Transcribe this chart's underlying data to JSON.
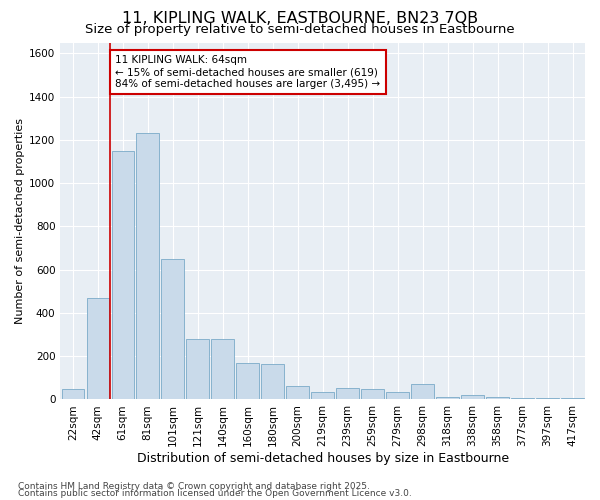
{
  "title1": "11, KIPLING WALK, EASTBOURNE, BN23 7QB",
  "title2": "Size of property relative to semi-detached houses in Eastbourne",
  "xlabel": "Distribution of semi-detached houses by size in Eastbourne",
  "ylabel": "Number of semi-detached properties",
  "categories": [
    "22sqm",
    "42sqm",
    "61sqm",
    "81sqm",
    "101sqm",
    "121sqm",
    "140sqm",
    "160sqm",
    "180sqm",
    "200sqm",
    "219sqm",
    "239sqm",
    "259sqm",
    "279sqm",
    "298sqm",
    "318sqm",
    "338sqm",
    "358sqm",
    "377sqm",
    "397sqm",
    "417sqm"
  ],
  "values": [
    50,
    470,
    1150,
    1230,
    650,
    280,
    280,
    170,
    165,
    60,
    35,
    55,
    50,
    35,
    70,
    10,
    20,
    10,
    5,
    5,
    5
  ],
  "bar_color": "#c9daea",
  "bar_edge_color": "#7aaac8",
  "redline_color": "#cc0000",
  "property_bin_index": 2,
  "annotation_text": "11 KIPLING WALK: 64sqm\n← 15% of semi-detached houses are smaller (619)\n84% of semi-detached houses are larger (3,495) →",
  "annotation_box_facecolor": "#ffffff",
  "annotation_box_edgecolor": "#cc0000",
  "footer1": "Contains HM Land Registry data © Crown copyright and database right 2025.",
  "footer2": "Contains public sector information licensed under the Open Government Licence v3.0.",
  "ylim": [
    0,
    1650
  ],
  "yticks": [
    0,
    200,
    400,
    600,
    800,
    1000,
    1200,
    1400,
    1600
  ],
  "bg_color": "#ffffff",
  "plot_bg_color": "#e8eef4",
  "grid_color": "#ffffff",
  "title1_fontsize": 11.5,
  "title2_fontsize": 9.5,
  "xlabel_fontsize": 9,
  "ylabel_fontsize": 8,
  "tick_fontsize": 7.5,
  "annot_fontsize": 7.5,
  "footer_fontsize": 6.5
}
